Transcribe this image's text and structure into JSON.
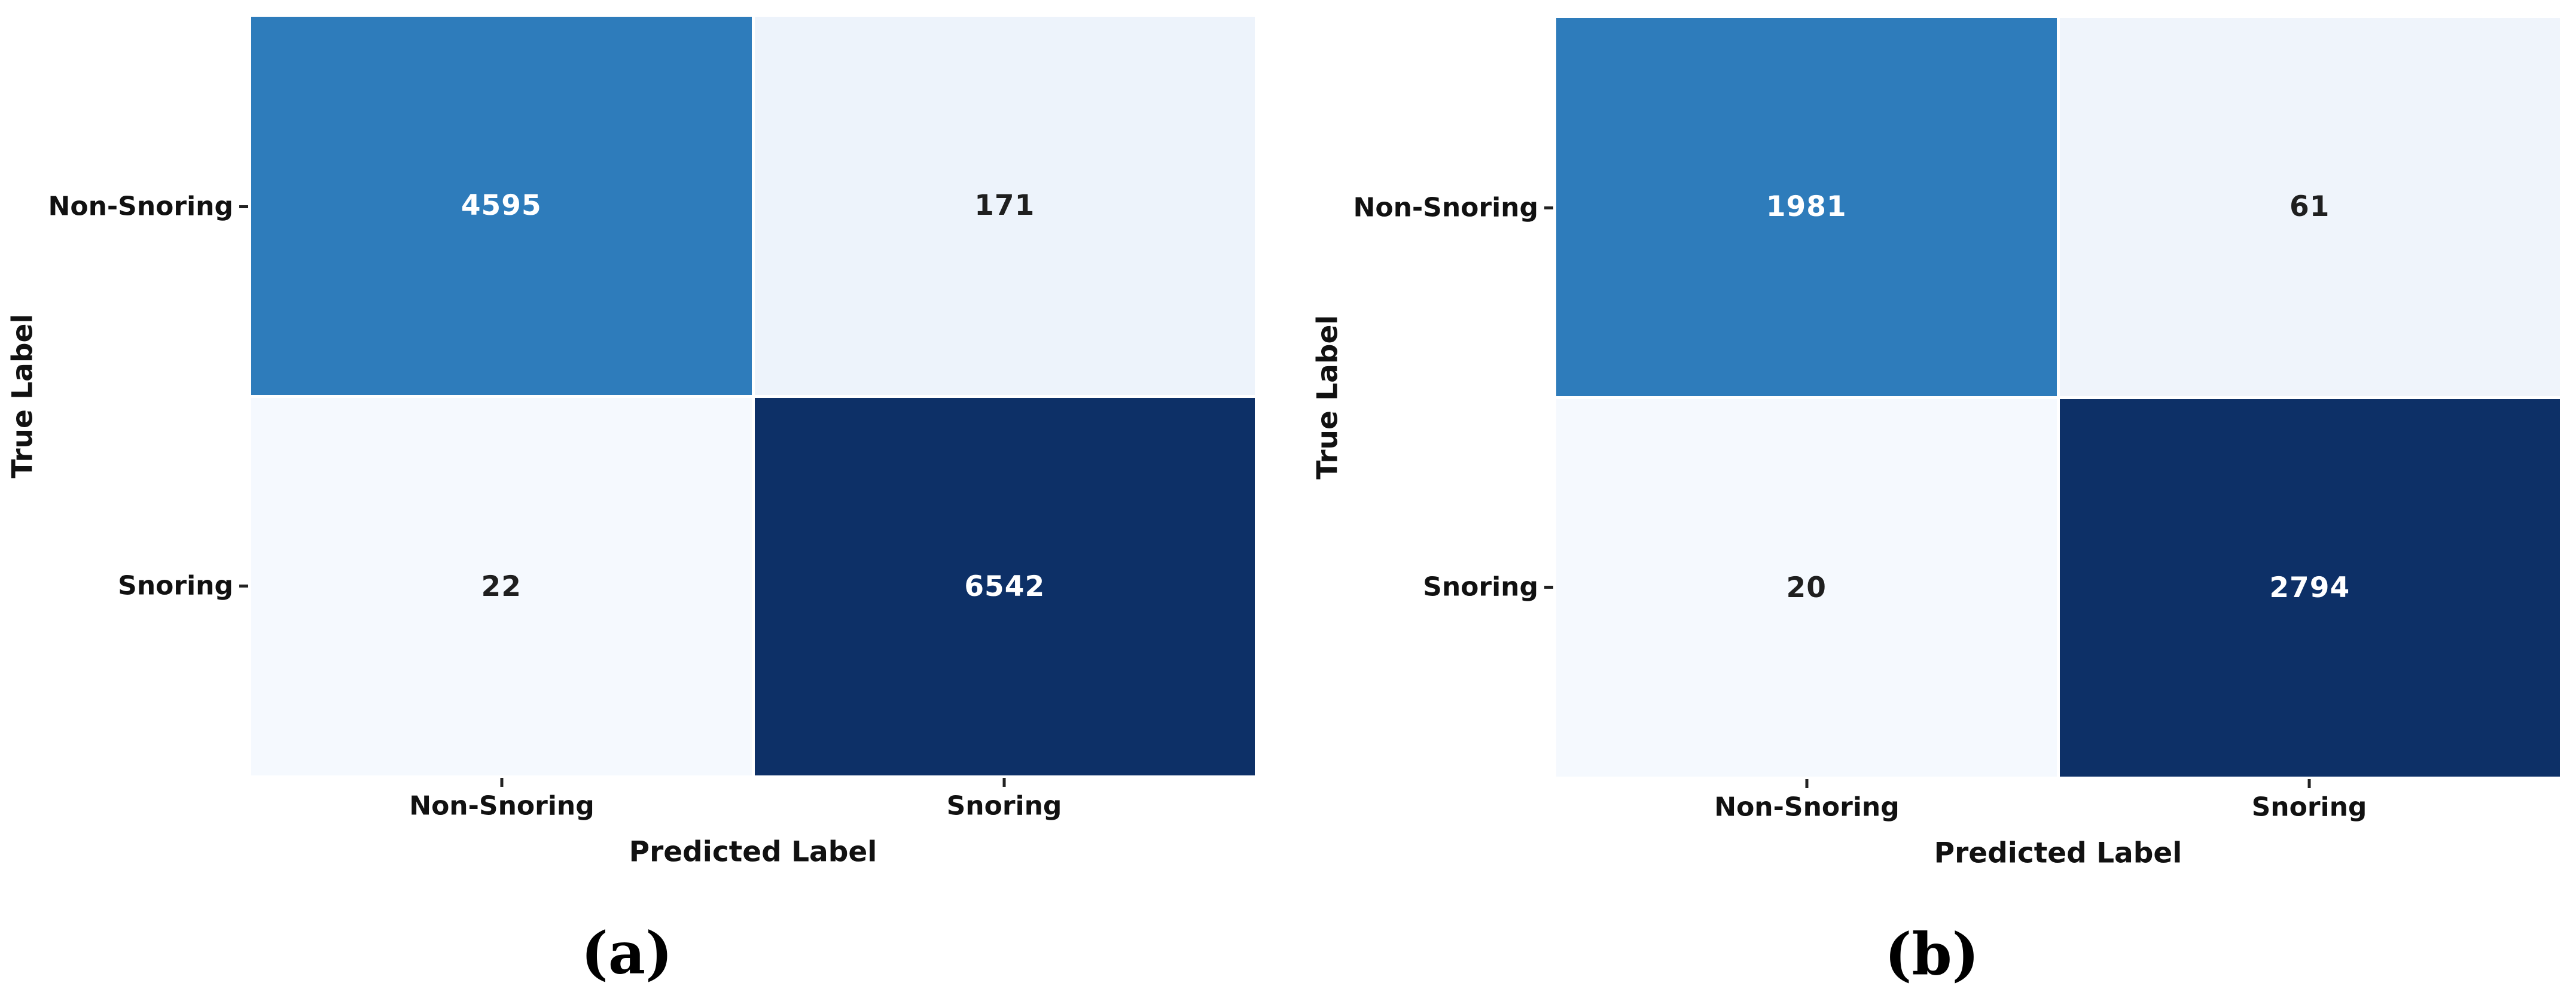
{
  "page": {
    "background": "#ffffff",
    "figure_type": "side-by-side confusion matrices"
  },
  "colors": {
    "high_cell": "#2e7cbb",
    "max_cell": "#0d3067",
    "low_cell": "#f5f9fe",
    "low_cell_alt": "#edf3fb",
    "gridline": "#ffffff",
    "label_text": "#111111",
    "cell_text_light": "#ffffff",
    "cell_text_dark": "#1f1f1f"
  },
  "chart_data": [
    {
      "type": "heatmap",
      "title": "(a)",
      "xlabel": "Predicted Label",
      "ylabel": "True Label",
      "x_categories": [
        "Non-Snoring",
        "Snoring"
      ],
      "y_categories": [
        "Non-Snoring",
        "Snoring"
      ],
      "values": [
        [
          4595,
          171
        ],
        [
          22,
          6542
        ]
      ],
      "colormap": "Blues",
      "legend": "none",
      "grid": "white cell separators"
    },
    {
      "type": "heatmap",
      "title": "(b)",
      "xlabel": "Predicted Label",
      "ylabel": "True Label",
      "x_categories": [
        "Non-Snoring",
        "Snoring"
      ],
      "y_categories": [
        "Non-Snoring",
        "Snoring"
      ],
      "values": [
        [
          1981,
          61
        ],
        [
          20,
          2794
        ]
      ],
      "colormap": "Blues",
      "legend": "none",
      "grid": "white cell separators"
    }
  ],
  "panels": [
    {
      "caption": "(a)",
      "x_axis_label": "Predicted Label",
      "y_axis_label": "True Label",
      "x_ticks": [
        "Non-Snoring",
        "Snoring"
      ],
      "y_ticks": [
        "Non-Snoring",
        "Snoring"
      ],
      "cells": [
        {
          "value": "4595",
          "bg": "#2e7cbb",
          "fg": "#ffffff"
        },
        {
          "value": "171",
          "bg": "#edf3fb",
          "fg": "#1f1f1f"
        },
        {
          "value": "22",
          "bg": "#f5f9fe",
          "fg": "#1f1f1f"
        },
        {
          "value": "6542",
          "bg": "#0d3067",
          "fg": "#ffffff"
        }
      ]
    },
    {
      "caption": "(b)",
      "x_axis_label": "Predicted Label",
      "y_axis_label": "True Label",
      "x_ticks": [
        "Non-Snoring",
        "Snoring"
      ],
      "y_ticks": [
        "Non-Snoring",
        "Snoring"
      ],
      "cells": [
        {
          "value": "1981",
          "bg": "#2e7cbb",
          "fg": "#ffffff"
        },
        {
          "value": "61",
          "bg": "#eff4fb",
          "fg": "#1f1f1f"
        },
        {
          "value": "20",
          "bg": "#f5f9fe",
          "fg": "#1f1f1f"
        },
        {
          "value": "2794",
          "bg": "#0d3067",
          "fg": "#ffffff"
        }
      ]
    }
  ]
}
